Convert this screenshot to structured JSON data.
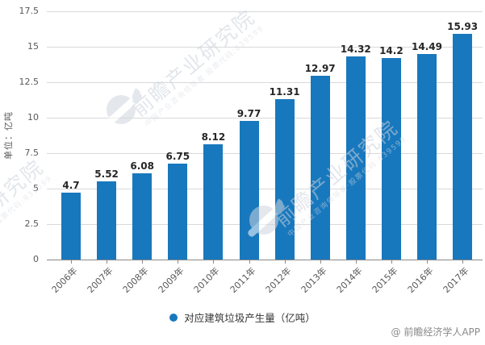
{
  "chart_data": {
    "type": "bar",
    "title": "",
    "categories": [
      "2006年",
      "2007年",
      "2008年",
      "2009年",
      "2010年",
      "2011年",
      "2012年",
      "2013年",
      "2014年",
      "2015年",
      "2016年",
      "2017年"
    ],
    "values": [
      4.7,
      5.52,
      6.08,
      6.75,
      8.12,
      9.77,
      11.31,
      12.97,
      14.32,
      14.2,
      14.49,
      15.93
    ],
    "value_labels": [
      "4.7",
      "5.52",
      "6.08",
      "6.75",
      "8.12",
      "9.77",
      "11.31",
      "12.97",
      "14.32",
      "14.2",
      "14.49",
      "15.93"
    ],
    "series_name": "对应建筑垃圾产生量（亿吨）",
    "xlabel": "",
    "ylabel": "单位：亿吨",
    "y_ticks": [
      0,
      2.5,
      5,
      7.5,
      10,
      12.5,
      15,
      17.5
    ],
    "y_tick_labels": [
      "0",
      "2.5",
      "5",
      "7.5",
      "10",
      "12.5",
      "15",
      "17.5"
    ],
    "ylim": [
      0,
      17.5
    ],
    "grid": true,
    "legend_position": "bottom",
    "bar_color": "#1878bd"
  },
  "y_axis": {
    "title": "单位：亿吨"
  },
  "legend": {
    "label": "对应建筑垃圾产生量（亿吨）",
    "marker_color": "#1878bd"
  },
  "watermark": {
    "brand": "前瞻产业研究院",
    "subtext": "中国产业咨询领导者·股票代码:839599"
  },
  "footer": {
    "attribution": "@ 前瞻经济学人APP"
  },
  "colors": {
    "bar": "#1878bd",
    "gridline": "#d9d9d9",
    "axis": "#898989",
    "tick_text": "#595959",
    "value_text": "#262626",
    "watermark": "#ccd2db"
  }
}
